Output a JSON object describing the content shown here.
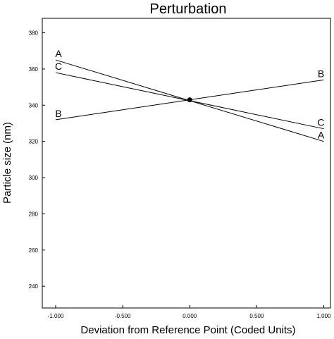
{
  "chart_data": {
    "type": "line",
    "title": "Perturbation",
    "xlabel": "Deviation from Reference Point (Coded Units)",
    "ylabel": "Particle size (nm)",
    "xlim": [
      -1.1,
      1.05
    ],
    "ylim": [
      228,
      388
    ],
    "x_ticks": [
      -1.0,
      -0.5,
      0.0,
      0.5,
      1.0
    ],
    "x_tick_labels": [
      "-1.000",
      "-0.500",
      "0.000",
      "0.500",
      "1.000"
    ],
    "y_ticks": [
      240,
      260,
      280,
      300,
      320,
      340,
      360,
      380
    ],
    "y_tick_labels": [
      "240",
      "260",
      "280",
      "300",
      "320",
      "340",
      "360",
      "380"
    ],
    "grid": false,
    "reference_point": {
      "x": 0.0,
      "y": 343
    },
    "series": [
      {
        "name": "A",
        "x": [
          -1.0,
          1.0
        ],
        "values": [
          365,
          320
        ],
        "end_labels": [
          "A",
          "A"
        ]
      },
      {
        "name": "B",
        "x": [
          -1.0,
          1.0
        ],
        "values": [
          332,
          354
        ],
        "end_labels": [
          "B",
          "B"
        ]
      },
      {
        "name": "C",
        "x": [
          -1.0,
          1.0
        ],
        "values": [
          358,
          327
        ],
        "end_labels": [
          "C",
          "C"
        ]
      }
    ]
  }
}
